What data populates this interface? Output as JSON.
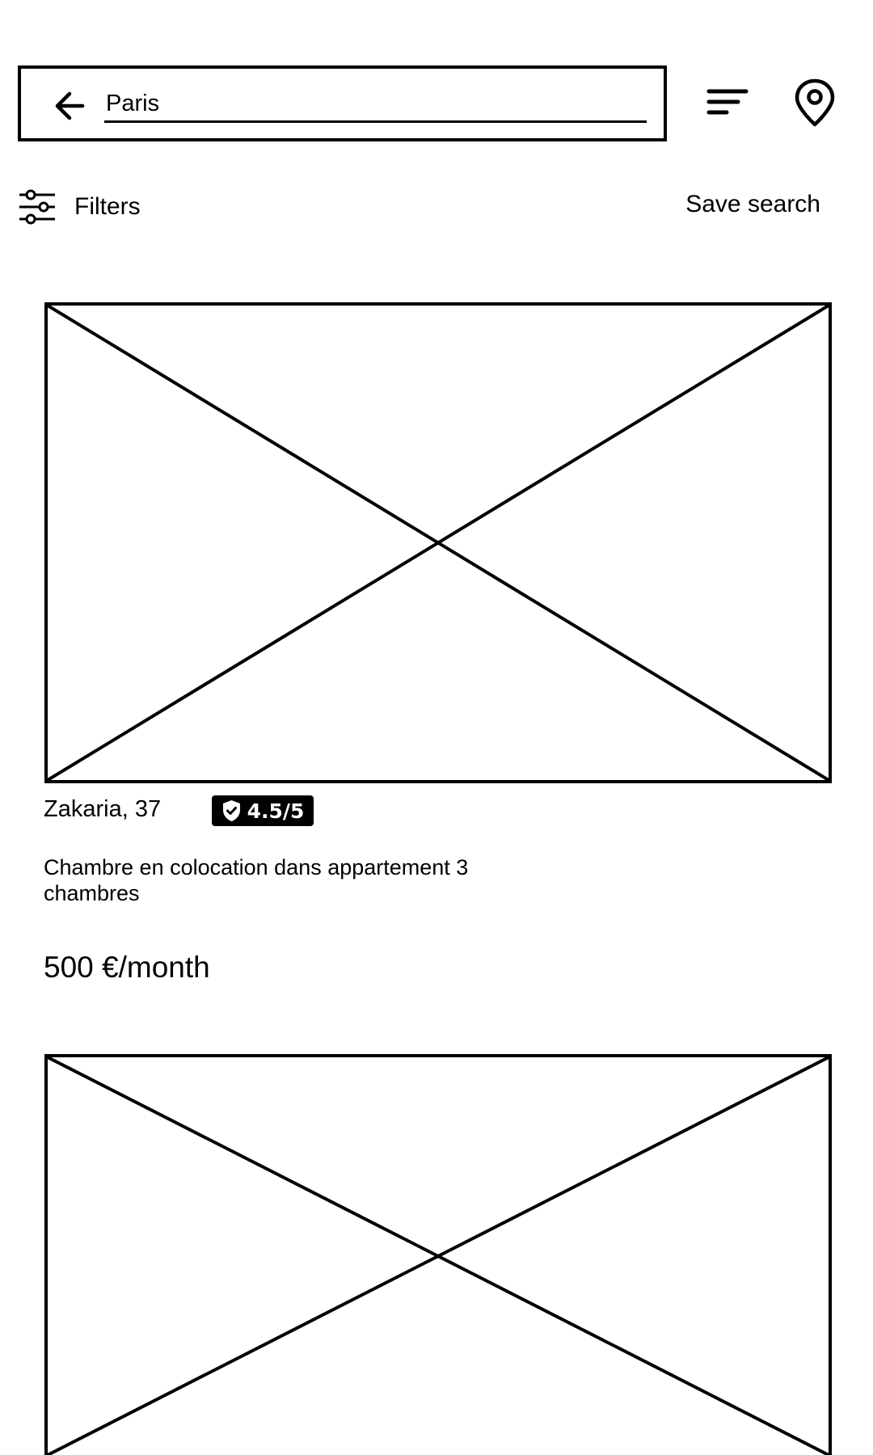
{
  "search": {
    "value": "Paris",
    "back_icon": "arrow-left-icon",
    "sort_icon": "sort-lines-icon",
    "map_icon": "location-pin-icon"
  },
  "toolbar": {
    "filters_label": "Filters",
    "filters_icon": "sliders-icon",
    "save_search_label": "Save search"
  },
  "listings": [
    {
      "image": "image-placeholder",
      "host": "Zakaria, 37",
      "rating": "4.5/5",
      "rating_icon": "shield-check-icon",
      "title": "Chambre en colocation dans appartement 3 chambres",
      "price": "500 €/month"
    },
    {
      "image": "image-placeholder"
    }
  ],
  "colors": {
    "foreground": "#000000",
    "background": "#ffffff",
    "badge_text": "#ffffff"
  }
}
